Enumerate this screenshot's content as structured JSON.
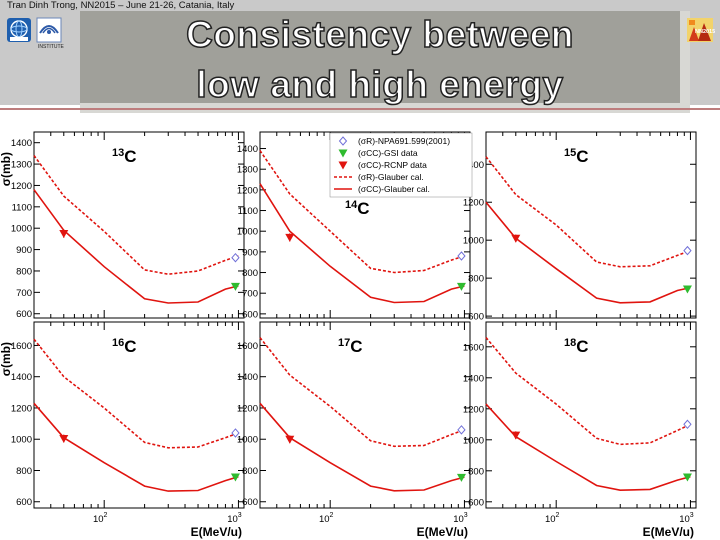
{
  "header": {
    "caption": "Tran Dinh Trong, NN2015 – June 21-26, Catania, Italy",
    "title_line1": "Consistency between",
    "title_line2": "low and high energy",
    "logo_left_1": "vinatom-logo-icon",
    "logo_left_2": "vinatom-logo-2-icon",
    "logo_left_2_text": "INSTITUTE",
    "logo_right_text": "NN2015",
    "logo_right_icon": "nn2015-logo-icon"
  },
  "colors": {
    "accent_line": "#bd7d7d",
    "series_red": "#e0140f",
    "series_green": "#2fbb2f",
    "series_blue": "#7070d8",
    "title_box": "#a0a09a",
    "header_band": "#c9c9c9"
  },
  "chart_data": {
    "type": "line",
    "xscale": "log",
    "xlim": [
      30,
      1100
    ],
    "xticks": [
      {
        "value": 100,
        "base": "10",
        "exp": "2"
      },
      {
        "value": 1000,
        "base": "10",
        "exp": "3"
      }
    ],
    "xlabel": "E(MeV/u)",
    "ylabel": "σ(mb)",
    "legend": {
      "position": "top-right",
      "entries": [
        {
          "label": "(σR)-NPA691.599(2001)",
          "marker": "open-diamond",
          "color": "#7070d8"
        },
        {
          "label": "(σCC)-GSI data",
          "marker": "down-triangle",
          "color": "#2fbb2f"
        },
        {
          "label": "(σCC)-RCNP data",
          "marker": "down-triangle",
          "color": "#e0140f"
        },
        {
          "label": "(σR)-Glauber cal.",
          "line": "dashed",
          "color": "#e0140f"
        },
        {
          "label": "(σCC)-Glauber cal.",
          "line": "solid",
          "color": "#e0140f"
        }
      ]
    },
    "panels": [
      {
        "label_mass": "13",
        "label_element": "C",
        "ylim": [
          580,
          1450
        ],
        "yticks": [
          600,
          700,
          800,
          900,
          1000,
          1100,
          1200,
          1300,
          1400
        ],
        "reaction_glauber": {
          "x": [
            30,
            50,
            100,
            200,
            300,
            500,
            800,
            1000
          ],
          "y": [
            1340,
            1150,
            985,
            805,
            785,
            800,
            850,
            870
          ]
        },
        "cc_glauber": {
          "x": [
            30,
            50,
            100,
            200,
            300,
            500,
            800,
            1000
          ],
          "y": [
            1180,
            990,
            820,
            670,
            650,
            655,
            715,
            730
          ]
        },
        "rcnp_data": {
          "x": [
            50
          ],
          "y": [
            975
          ],
          "err": [
            20
          ]
        },
        "gsi_data": {
          "x": [
            950
          ],
          "y": [
            728
          ],
          "err": [
            8
          ]
        },
        "npa_data": {
          "x": [
            950
          ],
          "y": [
            862
          ],
          "err": [
            12
          ]
        }
      },
      {
        "label_mass": "14",
        "label_element": "C",
        "ylim": [
          580,
          1480
        ],
        "yticks": [
          600,
          700,
          800,
          900,
          1000,
          1100,
          1200,
          1300,
          1400
        ],
        "reaction_glauber": {
          "x": [
            30,
            50,
            100,
            200,
            300,
            500,
            800,
            1000
          ],
          "y": [
            1390,
            1180,
            1000,
            820,
            800,
            810,
            860,
            880
          ]
        },
        "cc_glauber": {
          "x": [
            30,
            50,
            100,
            200,
            300,
            500,
            800,
            1000
          ],
          "y": [
            1230,
            1000,
            830,
            680,
            655,
            660,
            720,
            735
          ]
        },
        "rcnp_data": {
          "x": [
            50
          ],
          "y": [
            970
          ],
          "err": [
            20
          ]
        },
        "gsi_data": {
          "x": [
            950
          ],
          "y": [
            733
          ],
          "err": [
            8
          ]
        },
        "npa_data": {
          "x": [
            950
          ],
          "y": [
            880
          ],
          "err": [
            12
          ]
        }
      },
      {
        "label_mass": "15",
        "label_element": "C",
        "ylim": [
          590,
          1570
        ],
        "yticks": [
          600,
          800,
          1000,
          1200,
          1400
        ],
        "reaction_glauber": {
          "x": [
            30,
            50,
            100,
            200,
            300,
            500,
            800,
            1000
          ],
          "y": [
            1440,
            1240,
            1080,
            885,
            860,
            865,
            920,
            945
          ]
        },
        "cc_glauber": {
          "x": [
            30,
            50,
            100,
            200,
            300,
            500,
            800,
            1000
          ],
          "y": [
            1200,
            1010,
            850,
            695,
            670,
            675,
            735,
            750
          ]
        },
        "rcnp_data": {
          "x": [
            50
          ],
          "y": [
            1010
          ],
          "err": [
            20
          ]
        },
        "gsi_data": {
          "x": [
            950
          ],
          "y": [
            743
          ],
          "err": [
            8
          ]
        },
        "npa_data": {
          "x": [
            950
          ],
          "y": [
            945
          ],
          "err": [
            12
          ]
        }
      },
      {
        "label_mass": "16",
        "label_element": "C",
        "ylim": [
          560,
          1750
        ],
        "yticks": [
          600,
          800,
          1000,
          1200,
          1400,
          1600
        ],
        "reaction_glauber": {
          "x": [
            30,
            50,
            100,
            200,
            300,
            500,
            800,
            1000
          ],
          "y": [
            1640,
            1400,
            1200,
            980,
            945,
            950,
            1010,
            1040
          ]
        },
        "cc_glauber": {
          "x": [
            30,
            50,
            100,
            200,
            300,
            500,
            800,
            1000
          ],
          "y": [
            1230,
            1010,
            850,
            700,
            668,
            672,
            735,
            760
          ]
        },
        "rcnp_data": {
          "x": [
            50
          ],
          "y": [
            1005
          ],
          "err": [
            25
          ]
        },
        "gsi_data": {
          "x": [
            950
          ],
          "y": [
            758
          ],
          "err": [
            10
          ]
        },
        "npa_data": {
          "x": [
            950
          ],
          "y": [
            1040
          ],
          "err": [
            15
          ]
        }
      },
      {
        "label_mass": "17",
        "label_element": "C",
        "ylim": [
          560,
          1750
        ],
        "yticks": [
          600,
          800,
          1000,
          1200,
          1400,
          1600
        ],
        "reaction_glauber": {
          "x": [
            30,
            50,
            100,
            200,
            300,
            500,
            800,
            1000
          ],
          "y": [
            1650,
            1410,
            1210,
            990,
            955,
            960,
            1030,
            1060
          ]
        },
        "cc_glauber": {
          "x": [
            30,
            50,
            100,
            200,
            300,
            500,
            800,
            1000
          ],
          "y": [
            1230,
            1010,
            850,
            700,
            670,
            675,
            735,
            758
          ]
        },
        "rcnp_data": {
          "x": [
            50
          ],
          "y": [
            1000
          ],
          "err": [
            25
          ]
        },
        "gsi_data": {
          "x": [
            950
          ],
          "y": [
            756
          ],
          "err": [
            10
          ]
        },
        "npa_data": {
          "x": [
            950
          ],
          "y": [
            1060
          ],
          "err": [
            15
          ]
        }
      },
      {
        "label_mass": "18",
        "label_element": "C",
        "ylim": [
          560,
          1760
        ],
        "yticks": [
          600,
          800,
          1000,
          1200,
          1400,
          1600
        ],
        "reaction_glauber": {
          "x": [
            30,
            50,
            100,
            200,
            300,
            500,
            800,
            1000
          ],
          "y": [
            1660,
            1430,
            1230,
            1010,
            970,
            980,
            1060,
            1100
          ]
        },
        "cc_glauber": {
          "x": [
            30,
            50,
            100,
            200,
            300,
            500,
            800,
            1000
          ],
          "y": [
            1230,
            1020,
            860,
            705,
            675,
            680,
            740,
            762
          ]
        },
        "rcnp_data": {
          "x": [
            50
          ],
          "y": [
            1030
          ],
          "err": [
            25
          ]
        },
        "gsi_data": {
          "x": [
            950
          ],
          "y": [
            760
          ],
          "err": [
            10
          ]
        },
        "npa_data": {
          "x": [
            950
          ],
          "y": [
            1100
          ],
          "err": [
            15
          ]
        }
      }
    ]
  }
}
